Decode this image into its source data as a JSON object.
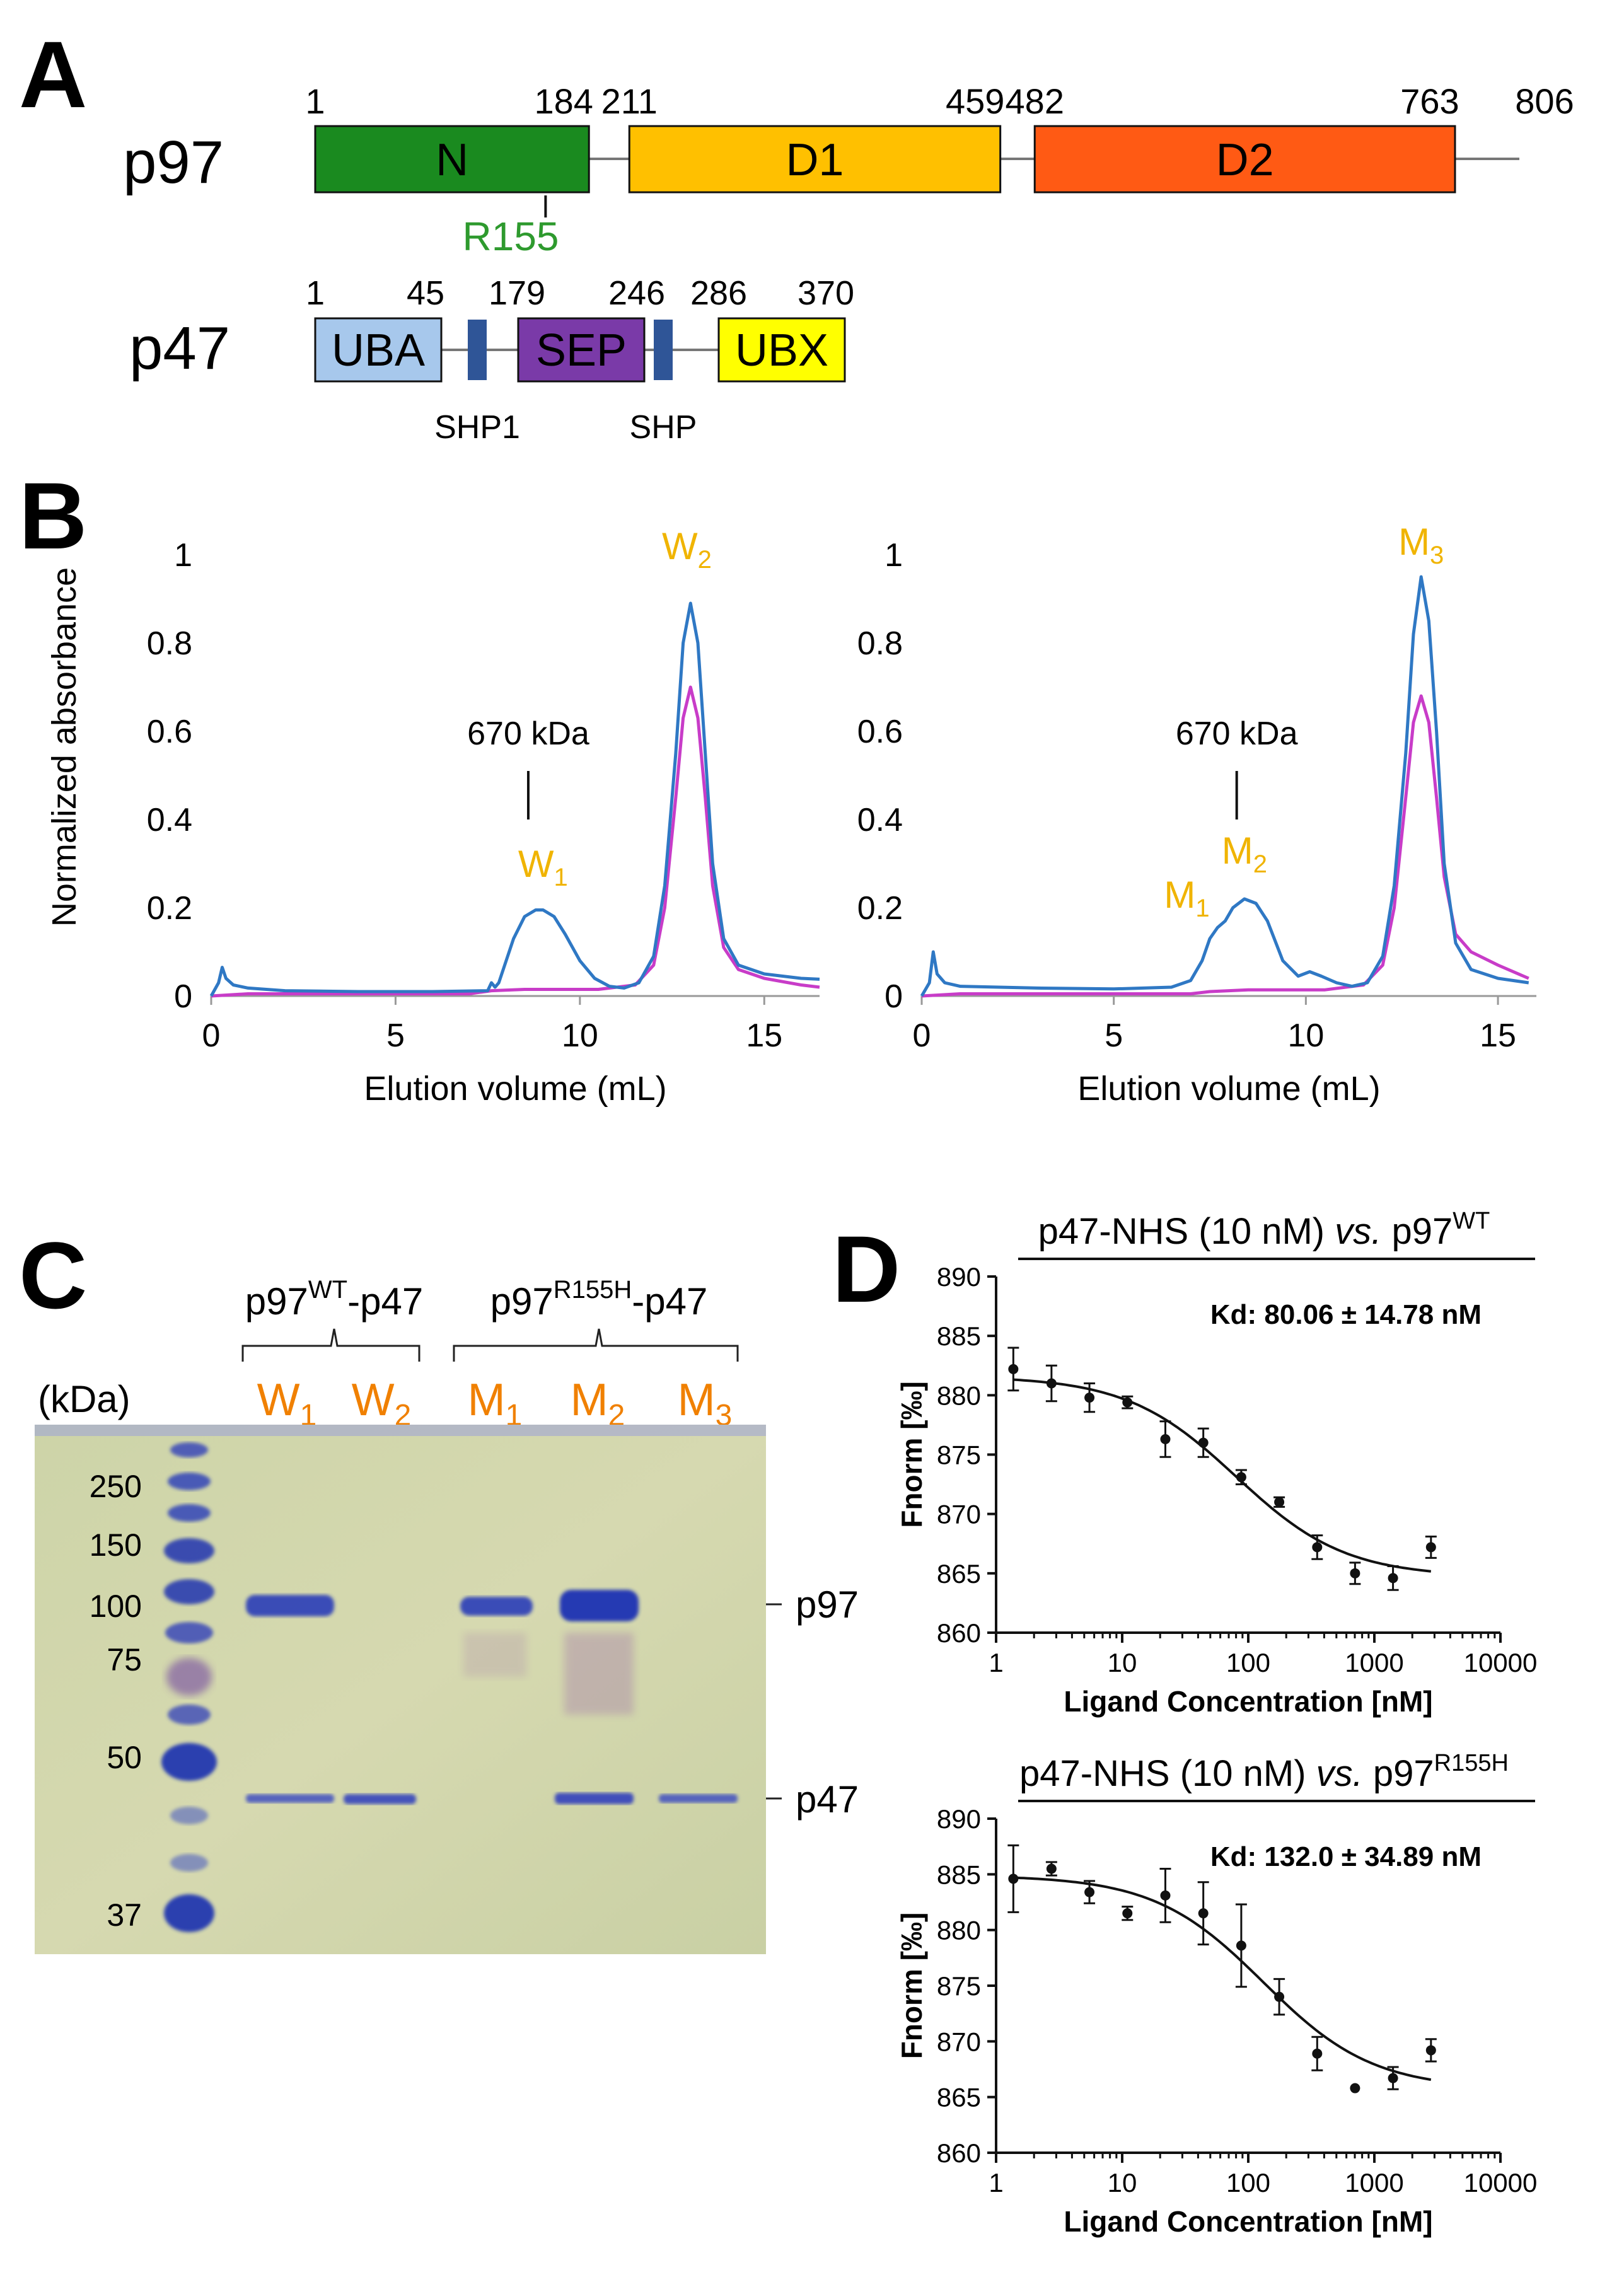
{
  "panels": {
    "A": {
      "letter": "A",
      "p97": {
        "name": "p97",
        "positions": [
          "1",
          "184",
          "211",
          "459",
          "482",
          "763",
          "806"
        ],
        "domains": [
          {
            "label": "N",
            "start": 1,
            "end": 184,
            "color": "#1a8a1f"
          },
          {
            "label": "D1",
            "start": 211,
            "end": 459,
            "color": "#ffc000"
          },
          {
            "label": "D2",
            "start": 482,
            "end": 763,
            "color": "#ff5a14"
          }
        ],
        "length": 806,
        "mutation": {
          "label": "R155",
          "position": 155,
          "color": "#2e9a2e"
        }
      },
      "p47": {
        "name": "p47",
        "positions": [
          "1",
          "45",
          "179",
          "246",
          "286",
          "370"
        ],
        "domains": [
          {
            "label": "UBA",
            "color": "#a7c8ec"
          },
          {
            "label": "SEP",
            "color": "#7a3aa8"
          },
          {
            "label": "UBX",
            "color": "#ffff00"
          }
        ],
        "motifs": [
          {
            "label": "SHP1",
            "color": "#2f5597"
          },
          {
            "label": "SHP",
            "color": "#2f5597"
          }
        ]
      }
    },
    "B": {
      "letter": "B",
      "marker": "670 kDa",
      "peak_color": "#f0b400"
    },
    "C": {
      "letter": "C",
      "group_labels": [
        {
          "base": "p97",
          "sup": "WT",
          "rest": "-p47"
        },
        {
          "base": "p97",
          "sup": "R155H",
          "rest": "-p47"
        }
      ],
      "kda_label": "(kDa)",
      "lanes": [
        {
          "base": "W",
          "sub": "1"
        },
        {
          "base": "W",
          "sub": "2"
        },
        {
          "base": "M",
          "sub": "1"
        },
        {
          "base": "M",
          "sub": "2"
        },
        {
          "base": "M",
          "sub": "3"
        }
      ],
      "ladder": [
        "250",
        "150",
        "100",
        "75",
        "50",
        "37"
      ],
      "bands": [
        {
          "label": "p97"
        },
        {
          "label": "p47"
        }
      ],
      "lane_color": "#f08000"
    },
    "D": {
      "letter": "D"
    }
  },
  "chart_data": [
    {
      "type": "line",
      "title": "",
      "xlabel": "Elution volume (mL)",
      "ylabel": "Normalized absorbance",
      "xlim": [
        0,
        16.5
      ],
      "ylim": [
        0,
        1
      ],
      "xticks": [
        "0",
        "5",
        "10",
        "15"
      ],
      "yticks": [
        "0",
        "0.2",
        "0.4",
        "0.6",
        "0.8",
        "1"
      ],
      "marker_x": 8.6,
      "marker_label": "670 kDa",
      "peaks": [
        {
          "base": "W",
          "sub": "1",
          "x": 9.0,
          "y": 0.27
        },
        {
          "base": "W",
          "sub": "2",
          "x": 12.9,
          "y": 0.99
        }
      ],
      "series": [
        {
          "name": "blue",
          "color": "#2f78c4",
          "x": [
            0,
            0.2,
            0.3,
            0.4,
            0.6,
            1.0,
            2,
            4,
            6,
            7.5,
            7.6,
            7.7,
            7.8,
            8.0,
            8.2,
            8.5,
            8.8,
            9.0,
            9.3,
            9.6,
            10.0,
            10.4,
            10.8,
            11.2,
            11.6,
            12.0,
            12.3,
            12.6,
            12.8,
            13.0,
            13.2,
            13.4,
            13.6,
            13.9,
            14.3,
            15.0,
            16.0,
            16.5
          ],
          "y": [
            0.0,
            0.03,
            0.065,
            0.04,
            0.025,
            0.018,
            0.012,
            0.01,
            0.01,
            0.012,
            0.03,
            0.02,
            0.03,
            0.08,
            0.13,
            0.18,
            0.195,
            0.195,
            0.18,
            0.14,
            0.08,
            0.04,
            0.022,
            0.018,
            0.03,
            0.09,
            0.25,
            0.55,
            0.8,
            0.89,
            0.8,
            0.55,
            0.3,
            0.13,
            0.07,
            0.05,
            0.04,
            0.038
          ]
        },
        {
          "name": "magenta",
          "color": "#c83cc8",
          "x": [
            0,
            1,
            3,
            5,
            7,
            7.6,
            8.5,
            9.5,
            10.5,
            11.5,
            12.0,
            12.3,
            12.6,
            12.8,
            13.0,
            13.2,
            13.4,
            13.6,
            13.9,
            14.3,
            15.0,
            16.0,
            16.5
          ],
          "y": [
            0.0,
            0.005,
            0.005,
            0.005,
            0.005,
            0.012,
            0.015,
            0.015,
            0.015,
            0.025,
            0.07,
            0.2,
            0.45,
            0.63,
            0.7,
            0.63,
            0.45,
            0.25,
            0.11,
            0.06,
            0.04,
            0.025,
            0.02
          ]
        }
      ]
    },
    {
      "type": "line",
      "title": "",
      "xlabel": "Elution volume (mL)",
      "ylabel": "",
      "xlim": [
        0,
        16
      ],
      "ylim": [
        0,
        1
      ],
      "xticks": [
        "0",
        "5",
        "10",
        "15"
      ],
      "yticks": [
        "0",
        "0.2",
        "0.4",
        "0.6",
        "0.8",
        "1"
      ],
      "marker_x": 8.2,
      "marker_label": "670 kDa",
      "peaks": [
        {
          "base": "M",
          "sub": "1",
          "x": 6.9,
          "y": 0.2
        },
        {
          "base": "M",
          "sub": "2",
          "x": 8.4,
          "y": 0.3
        },
        {
          "base": "M",
          "sub": "3",
          "x": 13.0,
          "y": 1.0
        }
      ],
      "series": [
        {
          "name": "blue",
          "color": "#2f78c4",
          "x": [
            0,
            0.2,
            0.3,
            0.4,
            0.6,
            1.0,
            3,
            5,
            6.5,
            7.0,
            7.3,
            7.5,
            7.7,
            7.9,
            8.1,
            8.4,
            8.7,
            9.0,
            9.4,
            9.8,
            10.1,
            10.4,
            10.8,
            11.2,
            11.6,
            12.0,
            12.3,
            12.6,
            12.8,
            13.0,
            13.2,
            13.4,
            13.6,
            13.9,
            14.3,
            15.0,
            15.8
          ],
          "y": [
            0.0,
            0.03,
            0.1,
            0.05,
            0.03,
            0.022,
            0.018,
            0.016,
            0.02,
            0.035,
            0.08,
            0.13,
            0.155,
            0.17,
            0.2,
            0.22,
            0.21,
            0.17,
            0.08,
            0.045,
            0.055,
            0.045,
            0.03,
            0.022,
            0.03,
            0.09,
            0.25,
            0.55,
            0.82,
            0.95,
            0.85,
            0.6,
            0.3,
            0.12,
            0.06,
            0.04,
            0.03
          ]
        },
        {
          "name": "magenta",
          "color": "#c83cc8",
          "x": [
            0,
            1,
            3,
            5,
            7,
            7.5,
            8.5,
            9.5,
            10.5,
            11.5,
            12.0,
            12.3,
            12.6,
            12.8,
            13.0,
            13.2,
            13.4,
            13.6,
            13.9,
            14.3,
            15.0,
            15.8
          ],
          "y": [
            0.0,
            0.005,
            0.005,
            0.005,
            0.005,
            0.01,
            0.014,
            0.014,
            0.014,
            0.025,
            0.07,
            0.2,
            0.45,
            0.62,
            0.68,
            0.62,
            0.45,
            0.27,
            0.14,
            0.1,
            0.07,
            0.04
          ]
        }
      ]
    },
    {
      "type": "scatter",
      "title_parts": {
        "pre": "p47-NHS (10 nM) ",
        "italic": "vs.",
        "post": " p97",
        "sup": "WT"
      },
      "kd": "Kd: 80.06 ± 14.78 nM",
      "xlabel": "Ligand Concentration [nM]",
      "ylabel": "Fnorm [‰]",
      "xscale": "log",
      "xlim": [
        1,
        10000
      ],
      "ylim": [
        860,
        890
      ],
      "xticks": [
        "1",
        "10",
        "100",
        "1000",
        "10000"
      ],
      "yticks": [
        "860",
        "865",
        "870",
        "875",
        "880",
        "885",
        "890"
      ],
      "points": [
        {
          "x": 1.37,
          "y": 882.2,
          "err": 1.8
        },
        {
          "x": 2.75,
          "y": 881.0,
          "err": 1.5
        },
        {
          "x": 5.5,
          "y": 879.8,
          "err": 1.2
        },
        {
          "x": 11,
          "y": 879.4,
          "err": 0.5
        },
        {
          "x": 22,
          "y": 876.3,
          "err": 1.5
        },
        {
          "x": 44,
          "y": 876.0,
          "err": 1.2
        },
        {
          "x": 88,
          "y": 873.1,
          "err": 0.6
        },
        {
          "x": 176,
          "y": 871.0,
          "err": 0.4
        },
        {
          "x": 352,
          "y": 867.2,
          "err": 1.0
        },
        {
          "x": 703,
          "y": 865.0,
          "err": 0.9
        },
        {
          "x": 1406,
          "y": 864.6,
          "err": 1.0
        },
        {
          "x": 2813,
          "y": 867.2,
          "err": 0.9
        }
      ],
      "fit": {
        "top": 881.6,
        "bottom": 864.7,
        "kd": 80.06,
        "xmin": 1.37,
        "xmax": 2813
      }
    },
    {
      "type": "scatter",
      "title_parts": {
        "pre": "p47-NHS (10 nM) ",
        "italic": "vs.",
        "post": " p97",
        "sup": "R155H"
      },
      "kd": "Kd: 132.0 ± 34.89 nM",
      "xlabel": "Ligand Concentration [nM]",
      "ylabel": "Fnorm [‰]",
      "xscale": "log",
      "xlim": [
        1,
        10000
      ],
      "ylim": [
        860,
        890
      ],
      "xticks": [
        "1",
        "10",
        "100",
        "1000",
        "10000"
      ],
      "yticks": [
        "860",
        "865",
        "870",
        "875",
        "880",
        "885",
        "890"
      ],
      "points": [
        {
          "x": 1.37,
          "y": 884.6,
          "err": 3.0
        },
        {
          "x": 2.75,
          "y": 885.5,
          "err": 0.6
        },
        {
          "x": 5.5,
          "y": 883.4,
          "err": 1.0
        },
        {
          "x": 11,
          "y": 881.5,
          "err": 0.6
        },
        {
          "x": 22,
          "y": 883.1,
          "err": 2.4
        },
        {
          "x": 44,
          "y": 881.5,
          "err": 2.8
        },
        {
          "x": 88,
          "y": 878.6,
          "err": 3.7
        },
        {
          "x": 176,
          "y": 874.0,
          "err": 1.6
        },
        {
          "x": 352,
          "y": 868.9,
          "err": 1.5
        },
        {
          "x": 703,
          "y": 865.8,
          "err": 0
        },
        {
          "x": 1406,
          "y": 866.7,
          "err": 1.0
        },
        {
          "x": 2813,
          "y": 869.2,
          "err": 1.0
        }
      ],
      "fit": {
        "top": 884.9,
        "bottom": 865.7,
        "kd": 132.0,
        "xmin": 1.37,
        "xmax": 2813
      }
    }
  ]
}
